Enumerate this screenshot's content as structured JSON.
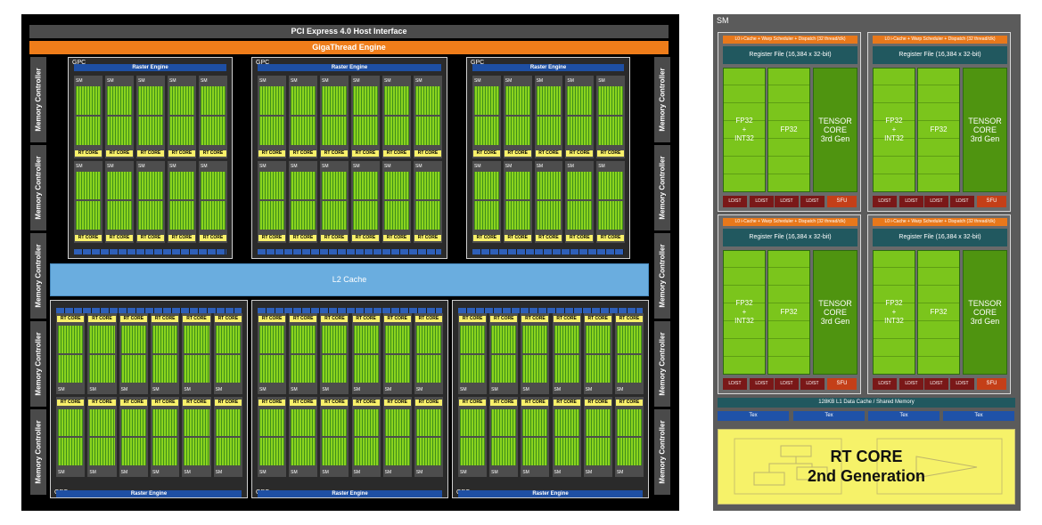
{
  "gpu": {
    "pcie_label": "PCI Express 4.0 Host Interface",
    "gigathread_label": "GigaThread Engine",
    "l2_label": "L2 Cache",
    "memory_controller_label": "Memory Controller",
    "gpc_label": "GPC",
    "raster_engine_label": "Raster Engine",
    "tpc_label": "TPC",
    "polymorph_label": "PolyMorph Engine",
    "sm_label": "SM",
    "rt_core_label": "RT CORE"
  },
  "sm_detail": {
    "title": "SM",
    "l0_label": "L0 i-Cache + Warp Scheduler + Dispatch (32 thread/clk)",
    "register_file_label": "Register File (16,384 x 32-bit)",
    "fp32_int32_label": "FP32\n+\nINT32",
    "fp32_label": "FP32",
    "tensor_label": "TENSOR\nCORE\n3rd Gen",
    "ldst_label": "LD/ST",
    "sfu_label": "SFU",
    "l1_label": "128KB L1 Data Cache / Shared Memory",
    "tex_label": "Tex",
    "rt_core_title": "RT CORE",
    "rt_core_subtitle": "2nd Generation"
  },
  "colors": {
    "pcie": "#4b4b4b",
    "gigathread": "#ef7d1a",
    "l2": "#6aaddf",
    "raster": "#1e4fa3",
    "cuda_green": "#8ad31e",
    "rt_core_yellow": "#f8f06a",
    "register_teal": "#21585f",
    "ldst": "#7a1818",
    "sfu": "#c43f18"
  }
}
